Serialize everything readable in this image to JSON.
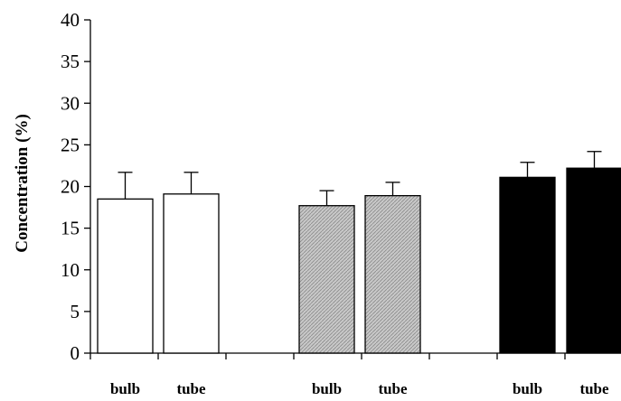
{
  "chart_data": {
    "type": "bar",
    "title": "",
    "ylabel": "Concentration (%)",
    "xlabel": "",
    "ylim": [
      0,
      40
    ],
    "yticks": [
      0,
      5,
      10,
      15,
      20,
      25,
      30,
      35,
      40
    ],
    "grid": false,
    "categories": [
      "bulb",
      "tube",
      "bulb",
      "tube",
      "bulb",
      "tube"
    ],
    "values": [
      18.5,
      19.1,
      17.7,
      18.9,
      21.1,
      22.2
    ],
    "error_plus": [
      3.2,
      2.6,
      1.8,
      1.6,
      1.8,
      2.0
    ],
    "fills": [
      "white",
      "white",
      "gray-hatched",
      "gray-hatched",
      "black",
      "black"
    ],
    "colors": {
      "white": "#ffffff",
      "gray": "#bdbdbd",
      "black": "#000000"
    }
  }
}
